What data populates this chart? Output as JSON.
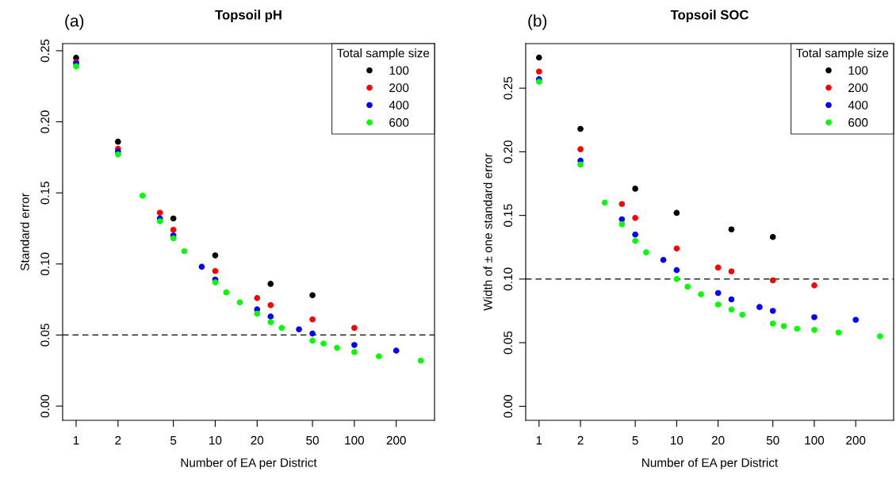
{
  "chart_data": [
    {
      "type": "scatter",
      "title": "Topsoil pH",
      "xlabel": "Number of EA per District",
      "ylabel": "Standard error",
      "annotations": [
        "(a)"
      ],
      "log": "x",
      "xlim": [
        0.8,
        377
      ],
      "xticks": [
        1,
        2,
        5,
        10,
        20,
        50,
        100,
        200
      ],
      "ylim": [
        -0.01,
        0.255
      ],
      "yticks": [
        {
          "value": 0,
          "label": "0.00"
        },
        0.05,
        {
          "value": 0.1,
          "label": "0.10"
        },
        0.15,
        {
          "value": 0.2,
          "label": "0.20"
        },
        0.25
      ],
      "grid": false,
      "marker": "circle",
      "legend": "top right",
      "legend_title": "Total sample size",
      "ref_lines": [
        {
          "axis": "y",
          "value": 0.05,
          "line_style": "dashed",
          "color": "#000000"
        }
      ],
      "series": [
        {
          "name": "100",
          "color": "#000000",
          "x": [
            1,
            2,
            5,
            10,
            25,
            50
          ],
          "values": [
            0.245,
            0.186,
            0.132,
            0.106,
            0.086,
            0.078
          ]
        },
        {
          "name": "200",
          "color": "#ff0000",
          "x": [
            1,
            2,
            4,
            5,
            10,
            20,
            25,
            50,
            100
          ],
          "values": [
            0.242,
            0.181,
            0.136,
            0.124,
            0.095,
            0.076,
            0.071,
            0.061,
            0.055
          ]
        },
        {
          "name": "400",
          "color": "#0000ff",
          "x": [
            1,
            2,
            4,
            5,
            8,
            10,
            20,
            25,
            40,
            50,
            100,
            200
          ],
          "values": [
            0.241,
            0.179,
            0.132,
            0.12,
            0.098,
            0.089,
            0.068,
            0.063,
            0.054,
            0.051,
            0.043,
            0.039
          ]
        },
        {
          "name": "600",
          "color": "#00ff00",
          "x": [
            1,
            2,
            3,
            4,
            5,
            6,
            10,
            12,
            15,
            20,
            25,
            30,
            50,
            60,
            75,
            100,
            150,
            300
          ],
          "values": [
            0.239,
            0.177,
            0.148,
            0.13,
            0.118,
            0.109,
            0.087,
            0.08,
            0.073,
            0.065,
            0.059,
            0.055,
            0.046,
            0.044,
            0.041,
            0.038,
            0.035,
            0.032
          ]
        }
      ]
    },
    {
      "type": "scatter",
      "title": "Topsoil SOC",
      "xlabel": "Number of EA per District",
      "ylabel": "Width of ± one standard error",
      "annotations": [
        "(b)"
      ],
      "log": "x",
      "xlim": [
        0.8,
        377
      ],
      "xticks": [
        1,
        2,
        5,
        10,
        20,
        50,
        100,
        200
      ],
      "ylim": [
        -0.011,
        0.285
      ],
      "yticks": [
        {
          "value": 0,
          "label": "0.00"
        },
        0.05,
        {
          "value": 0.1,
          "label": "0.10"
        },
        0.15,
        {
          "value": 0.2,
          "label": "0.20"
        },
        0.25
      ],
      "grid": false,
      "marker": "circle",
      "legend": "top right",
      "legend_title": "Total sample size",
      "ref_lines": [
        {
          "axis": "y",
          "value": 0.1,
          "line_style": "dashed",
          "color": "#000000"
        }
      ],
      "series": [
        {
          "name": "100",
          "color": "#000000",
          "x": [
            1,
            2,
            5,
            10,
            25,
            50
          ],
          "values": [
            0.274,
            0.218,
            0.171,
            0.152,
            0.139,
            0.133
          ]
        },
        {
          "name": "200",
          "color": "#ff0000",
          "x": [
            1,
            2,
            4,
            5,
            10,
            20,
            25,
            50,
            100
          ],
          "values": [
            0.263,
            0.202,
            0.159,
            0.148,
            0.124,
            0.109,
            0.106,
            0.099,
            0.095
          ]
        },
        {
          "name": "400",
          "color": "#0000ff",
          "x": [
            1,
            2,
            4,
            5,
            8,
            10,
            20,
            25,
            40,
            50,
            100,
            200
          ],
          "values": [
            0.257,
            0.193,
            0.147,
            0.135,
            0.115,
            0.107,
            0.089,
            0.084,
            0.078,
            0.075,
            0.07,
            0.068
          ]
        },
        {
          "name": "600",
          "color": "#00ff00",
          "x": [
            1,
            2,
            3,
            4,
            5,
            6,
            10,
            12,
            15,
            20,
            25,
            30,
            50,
            60,
            75,
            100,
            150,
            300
          ],
          "values": [
            0.255,
            0.19,
            0.16,
            0.143,
            0.13,
            0.121,
            0.1,
            0.094,
            0.088,
            0.08,
            0.076,
            0.072,
            0.065,
            0.063,
            0.061,
            0.06,
            0.058,
            0.055
          ]
        }
      ]
    }
  ]
}
